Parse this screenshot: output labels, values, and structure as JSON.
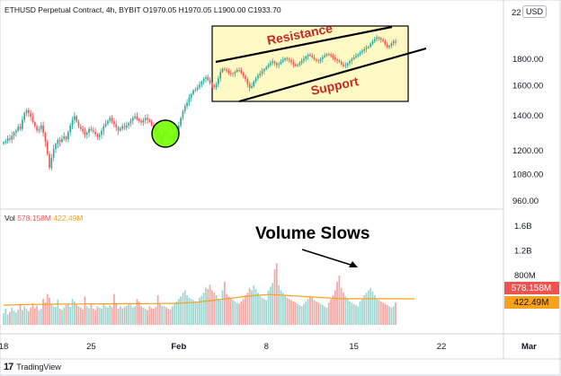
{
  "header": {
    "symbol": "ETHUSD Perpetual Contract, 4h, BYBIT",
    "o_label": "O",
    "o_value": "1970.05",
    "h_label": "H",
    "h_value": "1970.05",
    "l_label": "L",
    "l_value": "1900.00",
    "c_label": "C",
    "c_value": "1933.70"
  },
  "currency_button": "USD",
  "top_axis_partial": "22",
  "volume_header": {
    "label": "Vol",
    "v1": "578.158M",
    "v2": "422.49M"
  },
  "brand": "TradingView",
  "annotations": {
    "resistance": "Resistance",
    "support": "Support",
    "volume_slows": "Volume Slows"
  },
  "colors": {
    "up": "#26a69a",
    "down": "#ef5350",
    "vol_up": "#9fd6d1",
    "vol_down": "#f4a7a3",
    "box_fill": "#fff9c4",
    "annotation_text": "#c62828",
    "circle": "#76ff03",
    "ma": "#f7a21b"
  },
  "chart_data": {
    "type": "candlestick",
    "price_axis_ticks": [
      960,
      1080,
      1200,
      1400,
      1600,
      1800
    ],
    "price_axis_labels": [
      "960.00",
      "1080.00",
      "1200.00",
      "1400.00",
      "1600.00",
      "1800.00"
    ],
    "volume_axis_labels": [
      "800M",
      "1.2B",
      "1.6B"
    ],
    "volume_axis_ticks": [
      800,
      1200,
      1600
    ],
    "x_labels": [
      "18",
      "25",
      "Feb",
      "8",
      "15",
      "22",
      "Mar"
    ],
    "x_label_index": [
      0,
      42,
      84,
      126,
      168,
      210,
      252
    ],
    "last_price_badge": "578.158M",
    "ma_badge": "422.49M",
    "candles_per_day": 6,
    "close": [
      1245,
      1252,
      1268,
      1260,
      1283,
      1301,
      1312,
      1335,
      1322,
      1375,
      1418,
      1436,
      1418,
      1395,
      1361,
      1338,
      1312,
      1322,
      1342,
      1298,
      1248,
      1182,
      1112,
      1162,
      1208,
      1236,
      1258,
      1248,
      1265,
      1278,
      1262,
      1302,
      1342,
      1376,
      1398,
      1366,
      1336,
      1321,
      1306,
      1288,
      1300,
      1322,
      1313,
      1305,
      1290,
      1276,
      1287,
      1311,
      1336,
      1352,
      1370,
      1388,
      1368,
      1349,
      1331,
      1312,
      1323,
      1338,
      1330,
      1342,
      1356,
      1372,
      1386,
      1398,
      1381,
      1370,
      1360,
      1374,
      1388,
      1376,
      1366,
      1346,
      1332,
      1305,
      1289,
      1266,
      1281,
      1296,
      1284,
      1278,
      1270,
      1276,
      1290,
      1312,
      1340,
      1388,
      1430,
      1462,
      1486,
      1518,
      1542,
      1566,
      1574,
      1588,
      1609,
      1631,
      1650,
      1662,
      1640,
      1618,
      1601,
      1590,
      1612,
      1654,
      1701,
      1726,
      1719,
      1708,
      1694,
      1688,
      1692,
      1702,
      1716,
      1710,
      1696,
      1672,
      1648,
      1612,
      1586,
      1598,
      1632,
      1655,
      1676,
      1690,
      1706,
      1722,
      1738,
      1754,
      1770,
      1782,
      1768,
      1754,
      1762,
      1780,
      1795,
      1808,
      1802,
      1790,
      1776,
      1760,
      1748,
      1756,
      1770,
      1788,
      1804,
      1822,
      1836,
      1830,
      1815,
      1800,
      1792,
      1788,
      1800,
      1816,
      1830,
      1842,
      1838,
      1826,
      1812,
      1800,
      1790,
      1780,
      1760,
      1746,
      1752,
      1768,
      1786,
      1800,
      1814,
      1826,
      1840,
      1856,
      1870,
      1882,
      1892,
      1904,
      1928,
      1950,
      1968,
      1982,
      1976,
      1962,
      1948,
      1920,
      1898,
      1910,
      1932,
      1950,
      1940
    ],
    "volume_M": [
      190,
      260,
      170,
      210,
      280,
      230,
      200,
      250,
      330,
      240,
      300,
      260,
      220,
      280,
      350,
      270,
      310,
      240,
      260,
      420,
      360,
      500,
      440,
      330,
      300,
      290,
      410,
      260,
      240,
      280,
      320,
      350,
      290,
      420,
      380,
      330,
      300,
      280,
      250,
      460,
      300,
      270,
      330,
      260,
      240,
      300,
      280,
      260,
      350,
      300,
      280,
      320,
      290,
      500,
      340,
      260,
      300,
      270,
      290,
      310,
      340,
      330,
      280,
      300,
      420,
      380,
      300,
      280,
      260,
      240,
      300,
      270,
      260,
      290,
      480,
      340,
      310,
      300,
      280,
      260,
      250,
      300,
      340,
      380,
      420,
      460,
      520,
      560,
      480,
      440,
      420,
      400,
      380,
      360,
      440,
      470,
      520,
      600,
      580,
      650,
      560,
      520,
      480,
      420,
      400,
      560,
      700,
      500,
      460,
      440,
      400,
      380,
      360,
      340,
      380,
      420,
      480,
      520,
      600,
      560,
      640,
      580,
      520,
      470,
      440,
      420,
      400,
      560,
      620,
      680,
      900,
      1000,
      640,
      560,
      520,
      480,
      440,
      420,
      400,
      380,
      360,
      340,
      320,
      300,
      340,
      380,
      420,
      460,
      440,
      400,
      380,
      360,
      340,
      320,
      300,
      280,
      360,
      420,
      480,
      560,
      700,
      800,
      600,
      520,
      460,
      420,
      380,
      360,
      340,
      320,
      300,
      380,
      420,
      480,
      520,
      560,
      600,
      540,
      480,
      420,
      400,
      380,
      360,
      340,
      320,
      300,
      280,
      300,
      360,
      400,
      1580,
      740,
      540,
      520,
      480,
      460,
      580
    ],
    "ma_M": [
      320,
      320,
      322,
      322,
      323,
      323,
      325,
      326,
      327,
      327,
      328,
      328,
      330,
      330,
      331,
      331,
      332,
      332,
      332,
      333,
      333,
      334,
      334,
      335,
      335,
      336,
      336,
      336,
      336,
      337,
      337,
      337,
      338,
      338,
      338,
      338,
      338,
      339,
      339,
      339,
      339,
      340,
      340,
      340,
      340,
      340,
      341,
      341,
      341,
      341,
      341,
      342,
      342,
      342,
      342,
      342,
      342,
      343,
      343,
      343,
      343,
      343,
      343,
      344,
      344,
      344,
      344,
      344,
      344,
      345,
      345,
      345,
      345,
      345,
      345,
      346,
      346,
      346,
      346,
      346,
      347,
      347,
      348,
      349,
      350,
      352,
      354,
      356,
      358,
      360,
      362,
      364,
      366,
      368,
      372,
      376,
      380,
      384,
      388,
      392,
      396,
      400,
      404,
      408,
      412,
      416,
      420,
      424,
      428,
      432,
      436,
      440,
      444,
      448,
      452,
      456,
      460,
      464,
      468,
      472,
      476,
      478,
      480,
      482,
      484,
      486,
      488,
      490,
      492,
      490,
      488,
      486,
      484,
      482,
      480,
      478,
      476,
      474,
      472,
      470,
      468,
      466,
      464,
      462,
      460,
      458,
      456,
      454,
      452,
      450,
      448,
      446,
      444,
      442,
      440,
      438,
      436,
      434,
      432,
      430,
      428,
      426,
      424,
      424,
      424,
      424,
      424,
      424,
      424,
      424,
      424,
      424,
      424,
      424,
      424,
      424,
      424,
      424,
      424,
      424,
      424,
      424,
      424,
      424,
      424,
      424,
      424,
      424,
      424,
      424,
      424,
      422,
      422,
      422,
      422,
      422,
      422,
      422
    ]
  }
}
